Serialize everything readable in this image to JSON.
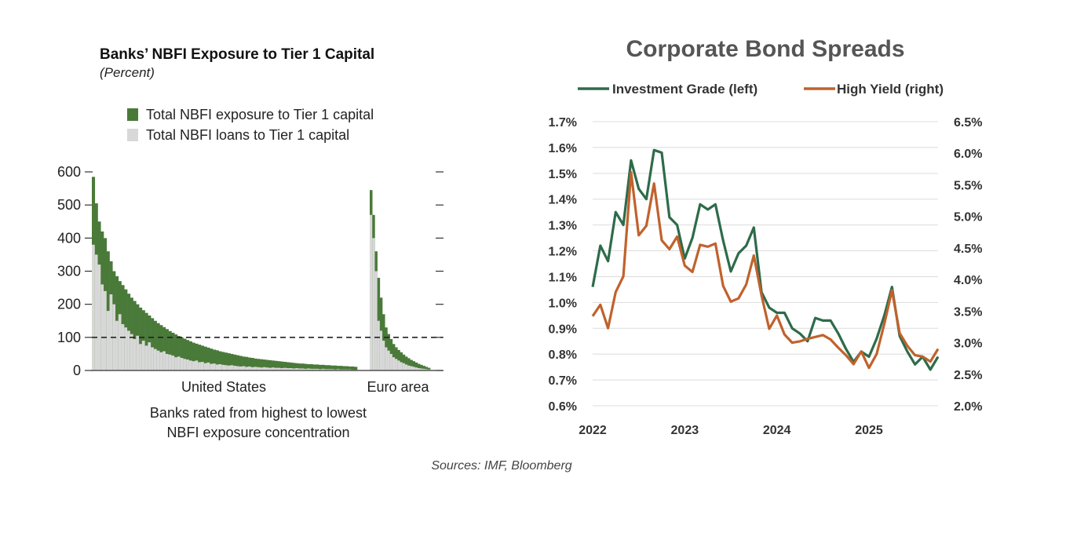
{
  "source_note": "Sources: IMF, Bloomberg",
  "chart_data": [
    {
      "type": "bar",
      "title": "Banks’ NBFI Exposure to Tier 1 Capital",
      "subtitle": "(Percent)",
      "xlabel_line1": "Banks rated from highest to lowest",
      "xlabel_line2": "NBFI exposure concentration",
      "ylim": [
        0,
        600
      ],
      "yticks": [
        "0",
        "100",
        "200",
        "300",
        "400",
        "500",
        "600"
      ],
      "reference_line": 100,
      "legend_position": "top",
      "colors": {
        "exposure": "#4a7a39",
        "loans": "#d8d8d8",
        "reference": "#222222"
      },
      "series": [
        {
          "name": "Total NBFI exposure to Tier 1 capital"
        },
        {
          "name": "Total NBFI loans to Tier 1 capital"
        }
      ],
      "groups": [
        {
          "label": "United States",
          "exposure": [
            585,
            505,
            450,
            420,
            400,
            360,
            330,
            300,
            285,
            270,
            258,
            245,
            232,
            220,
            210,
            200,
            190,
            182,
            174,
            166,
            158,
            150,
            143,
            137,
            131,
            125,
            119,
            114,
            109,
            104,
            100,
            96,
            92,
            88,
            84,
            81,
            78,
            75,
            72,
            69,
            66,
            63,
            61,
            58,
            56,
            54,
            52,
            50,
            48,
            46,
            44,
            42,
            41,
            39,
            38,
            36,
            35,
            34,
            33,
            32,
            31,
            30,
            29,
            28,
            27,
            26,
            25,
            24,
            23,
            22,
            21,
            21,
            20,
            19,
            19,
            18,
            18,
            17,
            17,
            16,
            16,
            15,
            15,
            14,
            14,
            13,
            13,
            12,
            12,
            11
          ],
          "loans": [
            380,
            350,
            320,
            260,
            240,
            180,
            230,
            200,
            150,
            170,
            140,
            130,
            120,
            110,
            95,
            105,
            80,
            90,
            75,
            85,
            70,
            65,
            60,
            55,
            58,
            50,
            48,
            45,
            40,
            42,
            38,
            35,
            33,
            30,
            28,
            30,
            25,
            26,
            22,
            24,
            20,
            21,
            18,
            19,
            17,
            16,
            15,
            16,
            14,
            13,
            12,
            13,
            11,
            12,
            10,
            11,
            10,
            9,
            10,
            9,
            8,
            9,
            8,
            8,
            7,
            8,
            7,
            7,
            6,
            7,
            6,
            6,
            5,
            6,
            5,
            5,
            5,
            4,
            5,
            4,
            4,
            4,
            3,
            4,
            3,
            3,
            3,
            3,
            2,
            2
          ]
        },
        {
          "label": "Euro area",
          "exposure": [
            545,
            470,
            360,
            280,
            220,
            170,
            130,
            110,
            95,
            80,
            70,
            62,
            55,
            48,
            42,
            37,
            32,
            28,
            24,
            20,
            17,
            14,
            11,
            8
          ],
          "loans": [
            470,
            400,
            300,
            150,
            120,
            90,
            70,
            60,
            50,
            40,
            35,
            30,
            25,
            22,
            18,
            15,
            13,
            11,
            9,
            7,
            6,
            5,
            4,
            3
          ]
        }
      ]
    },
    {
      "type": "line",
      "title": "Corporate Bond Spreads",
      "legend_position": "top",
      "x_ticks": [
        "2022",
        "2023",
        "2024",
        "2025"
      ],
      "left_ylim": [
        0.006,
        0.017
      ],
      "right_ylim": [
        0.02,
        0.065
      ],
      "left_ticks": [
        "0.6%",
        "0.7%",
        "0.8%",
        "0.9%",
        "1.0%",
        "1.1%",
        "1.2%",
        "1.3%",
        "1.4%",
        "1.5%",
        "1.6%",
        "1.7%"
      ],
      "right_ticks": [
        "2.0%",
        "2.5%",
        "3.0%",
        "3.5%",
        "4.0%",
        "4.5%",
        "5.0%",
        "5.5%",
        "6.0%",
        "6.5%"
      ],
      "x": [
        "2022-01",
        "2022-02",
        "2022-03",
        "2022-04",
        "2022-05",
        "2022-06",
        "2022-07",
        "2022-08",
        "2022-09",
        "2022-10",
        "2022-11",
        "2022-12",
        "2023-01",
        "2023-02",
        "2023-03",
        "2023-04",
        "2023-05",
        "2023-06",
        "2023-07",
        "2023-08",
        "2023-09",
        "2023-10",
        "2023-11",
        "2023-12",
        "2024-01",
        "2024-02",
        "2024-03",
        "2024-04",
        "2024-05",
        "2024-06",
        "2024-07",
        "2024-08",
        "2024-09",
        "2024-10",
        "2024-11",
        "2024-12",
        "2025-01",
        "2025-02",
        "2025-03",
        "2025-04",
        "2025-05",
        "2025-06",
        "2025-07",
        "2025-08",
        "2025-09",
        "2025-10"
      ],
      "series": [
        {
          "name": "Investment Grade (left)",
          "axis": "left",
          "color": "#2e6b4a",
          "values": [
            0.0106,
            0.0122,
            0.0116,
            0.0135,
            0.013,
            0.0155,
            0.0144,
            0.014,
            0.0159,
            0.0158,
            0.0133,
            0.013,
            0.0117,
            0.0125,
            0.0138,
            0.0136,
            0.0138,
            0.0124,
            0.0112,
            0.0119,
            0.0122,
            0.0129,
            0.0104,
            0.0098,
            0.0096,
            0.0096,
            0.009,
            0.0088,
            0.0085,
            0.0094,
            0.0093,
            0.0093,
            0.0088,
            0.0082,
            0.0077,
            0.0081,
            0.0079,
            0.0086,
            0.0095,
            0.0106,
            0.0087,
            0.0081,
            0.0076,
            0.0079,
            0.0074,
            0.0079
          ]
        },
        {
          "name": "High Yield (right)",
          "axis": "right",
          "color": "#c0622c",
          "values": [
            0.0342,
            0.036,
            0.0323,
            0.038,
            0.0405,
            0.057,
            0.047,
            0.0485,
            0.0552,
            0.0462,
            0.0448,
            0.0468,
            0.0422,
            0.0412,
            0.0455,
            0.0452,
            0.0457,
            0.039,
            0.0365,
            0.037,
            0.0392,
            0.0438,
            0.0375,
            0.0322,
            0.0343,
            0.0313,
            0.03,
            0.0302,
            0.0306,
            0.0309,
            0.0312,
            0.0305,
            0.0292,
            0.028,
            0.0266,
            0.0286,
            0.026,
            0.0282,
            0.033,
            0.0383,
            0.0315,
            0.0295,
            0.028,
            0.0278,
            0.027,
            0.029
          ]
        }
      ]
    }
  ]
}
